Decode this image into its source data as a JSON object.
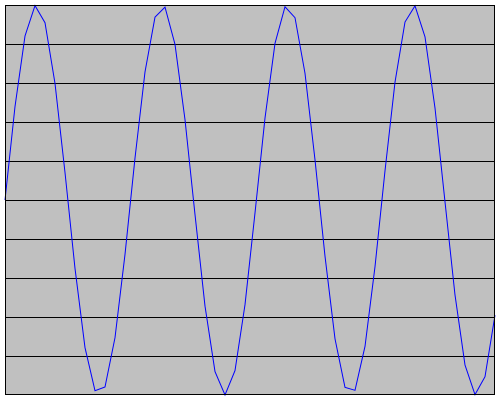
{
  "chart_data": {
    "type": "line",
    "title": "",
    "xlabel": "",
    "ylabel": "",
    "grid": true,
    "legend": "none",
    "ylim": [
      -1,
      1
    ],
    "y_gridlines": [
      0.8,
      0.6,
      0.4,
      0.2,
      0.0,
      -0.2,
      -0.4,
      -0.6,
      -0.8
    ],
    "xlim": [
      0,
      24.5
    ],
    "colors": {
      "plot_background": "#c0c0c0",
      "gridline": "#000000",
      "border": "#000000",
      "series": "#0000ff"
    },
    "series": [
      {
        "x": [
          0,
          0.5,
          1,
          1.5,
          2,
          2.5,
          3,
          3.5,
          4,
          4.5,
          5,
          5.5,
          6,
          6.5,
          7,
          7.5,
          8,
          8.5,
          9,
          9.5,
          10,
          10.5,
          11,
          11.5,
          12,
          12.5,
          13,
          13.5,
          14,
          14.5,
          15,
          15.5,
          16,
          16.5,
          17,
          17.5,
          18,
          18.5,
          19,
          19.5,
          20,
          20.5,
          21,
          21.5,
          22,
          22.5,
          23,
          23.5,
          24,
          24.5
        ],
        "y": [
          0,
          0.479,
          0.841,
          0.997,
          0.909,
          0.598,
          0.141,
          -0.351,
          -0.757,
          -0.978,
          -0.959,
          -0.706,
          -0.279,
          0.215,
          0.657,
          0.938,
          0.989,
          0.798,
          0.412,
          -0.075,
          -0.544,
          -0.88,
          -1.0,
          -0.875,
          -0.537,
          -0.066,
          0.42,
          0.803,
          0.991,
          0.935,
          0.65,
          0.206,
          -0.288,
          -0.712,
          -0.961,
          -0.976,
          -0.751,
          -0.342,
          0.15,
          0.604,
          0.913,
          0.996,
          0.837,
          0.472,
          -0.009,
          -0.487,
          -0.846,
          -0.998,
          -0.906,
          -0.591
        ]
      }
    ]
  }
}
